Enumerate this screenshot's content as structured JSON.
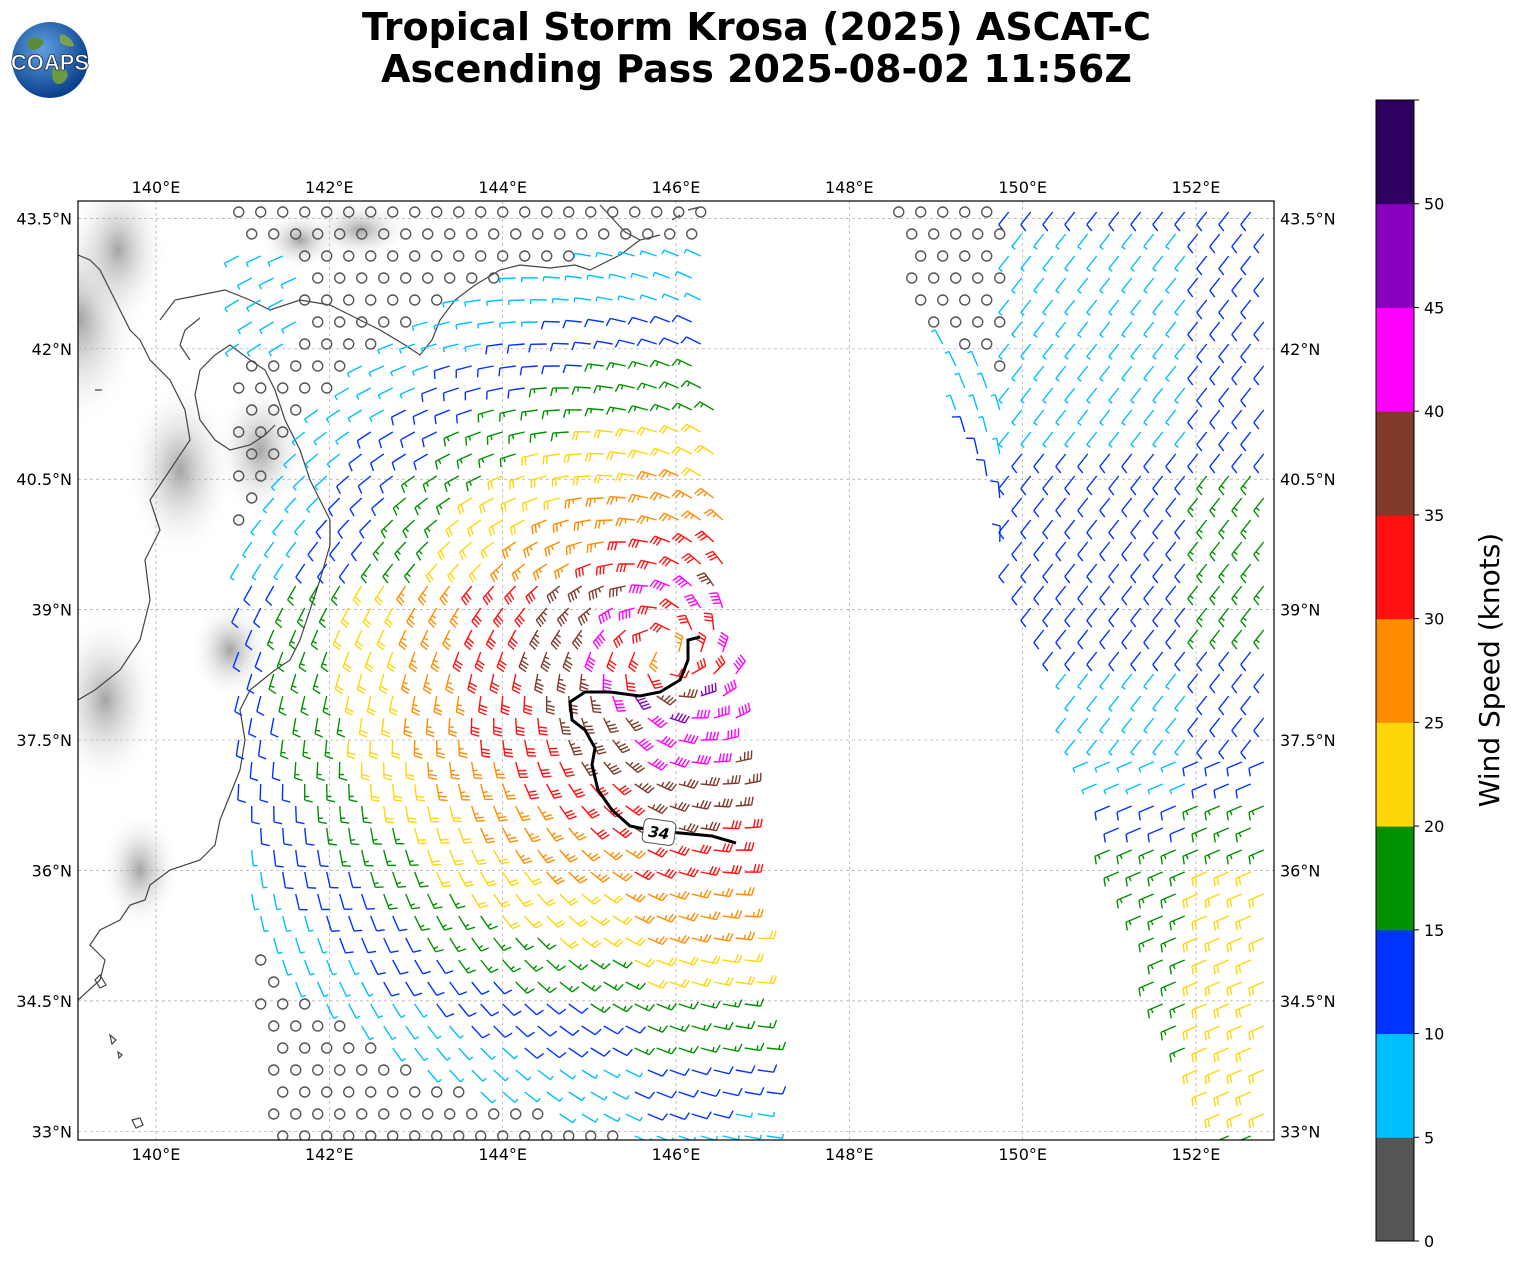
{
  "title": {
    "line1": "Tropical Storm Krosa (2025) ASCAT-C",
    "line2": "Ascending Pass 2025-08-02 11:56Z"
  },
  "logo": {
    "text": "COAPS",
    "icon": "globe-logo-icon"
  },
  "map": {
    "lon_ticks": [
      "140°E",
      "142°E",
      "144°E",
      "146°E",
      "148°E",
      "150°E",
      "152°E"
    ],
    "lat_ticks": [
      "43.5°N",
      "42°N",
      "40.5°N",
      "39°N",
      "37.5°N",
      "36°N",
      "34.5°N",
      "33°N"
    ],
    "lon_range": [
      139.1,
      152.9
    ],
    "lat_range": [
      32.9,
      43.7
    ],
    "gridlines": true,
    "contour_label": "34"
  },
  "colorbar": {
    "label": "Wind Speed (knots)",
    "tick_labels": [
      "0",
      "5",
      "10",
      "15",
      "20",
      "25",
      "30",
      "35",
      "40",
      "45",
      "50"
    ],
    "bins": [
      {
        "min": 0,
        "max": 5,
        "color": "#555555"
      },
      {
        "min": 5,
        "max": 10,
        "color": "#00bfff"
      },
      {
        "min": 10,
        "max": 15,
        "color": "#0033ff"
      },
      {
        "min": 15,
        "max": 20,
        "color": "#009100"
      },
      {
        "min": 20,
        "max": 25,
        "color": "#ffd60a"
      },
      {
        "min": 25,
        "max": 30,
        "color": "#ff8c00"
      },
      {
        "min": 30,
        "max": 35,
        "color": "#ff1010"
      },
      {
        "min": 35,
        "max": 40,
        "color": "#7f3a2a"
      },
      {
        "min": 40,
        "max": 45,
        "color": "#ff00ff"
      },
      {
        "min": 45,
        "max": 50,
        "color": "#8a00c0"
      },
      {
        "min": 50,
        "max": 55,
        "color": "#2e0060"
      }
    ]
  },
  "chart_data": {
    "type": "wind-barb-map",
    "storm_center": {
      "lon": 145.9,
      "lat": 38.5
    },
    "max_wind_kt": 43,
    "swath_west_edge_lon": [
      142.0,
      146.5
    ],
    "swath_east_edge_lon": [
      148.3,
      152.9
    ],
    "units": "knots"
  }
}
